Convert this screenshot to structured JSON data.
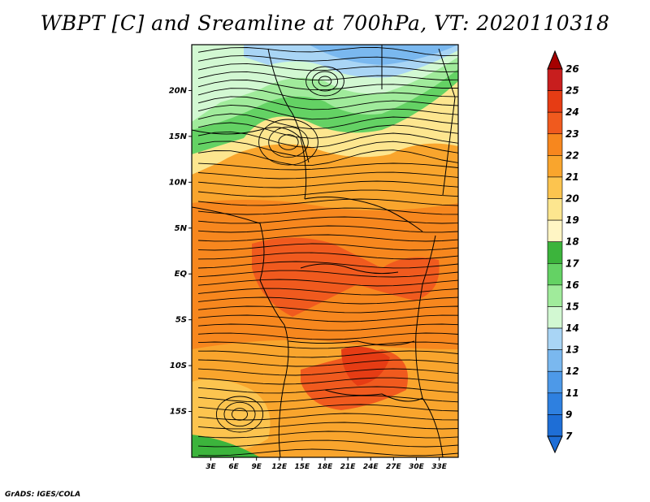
{
  "title": "WBPT [C] and Sreamline at 700hPa, VT: 2020110318",
  "credit": "GrADS: IGES/COLA",
  "map": {
    "lat_labels": [
      {
        "text": "20N",
        "lat": 20
      },
      {
        "text": "15N",
        "lat": 15
      },
      {
        "text": "10N",
        "lat": 10
      },
      {
        "text": "5N",
        "lat": 5
      },
      {
        "text": "EQ",
        "lat": 0
      },
      {
        "text": "5S",
        "lat": -5
      },
      {
        "text": "10S",
        "lat": -10
      },
      {
        "text": "15S",
        "lat": -15
      }
    ],
    "lon_labels": [
      {
        "text": "3E",
        "lon": 3
      },
      {
        "text": "6E",
        "lon": 6
      },
      {
        "text": "9E",
        "lon": 9
      },
      {
        "text": "12E",
        "lon": 12
      },
      {
        "text": "15E",
        "lon": 15
      },
      {
        "text": "18E",
        "lon": 18
      },
      {
        "text": "21E",
        "lon": 21
      },
      {
        "text": "24E",
        "lon": 24
      },
      {
        "text": "27E",
        "lon": 27
      },
      {
        "text": "30E",
        "lon": 30
      },
      {
        "text": "33E",
        "lon": 33
      }
    ],
    "lon_range": [
      0.5,
      35.5
    ],
    "lat_range": [
      -20,
      25
    ]
  },
  "colorbar": {
    "levels": [
      "26",
      "25",
      "24",
      "23",
      "22",
      "21",
      "20",
      "19",
      "18",
      "17",
      "16",
      "15",
      "14",
      "13",
      "12",
      "11",
      "9",
      "7"
    ],
    "colors": [
      "#a50000",
      "#c81e1e",
      "#e63c14",
      "#f05a1e",
      "#f7871e",
      "#f9a52d",
      "#fcc44f",
      "#fde68f",
      "#fff5c4",
      "#3cb43c",
      "#64d264",
      "#a0eb9b",
      "#d2f8d2",
      "#a9d5f5",
      "#7ab8ef",
      "#4d99e8",
      "#2e80e0",
      "#1e6ed6"
    ],
    "top_color": "#a50000",
    "bottom_color": "#1e6ed6"
  }
}
